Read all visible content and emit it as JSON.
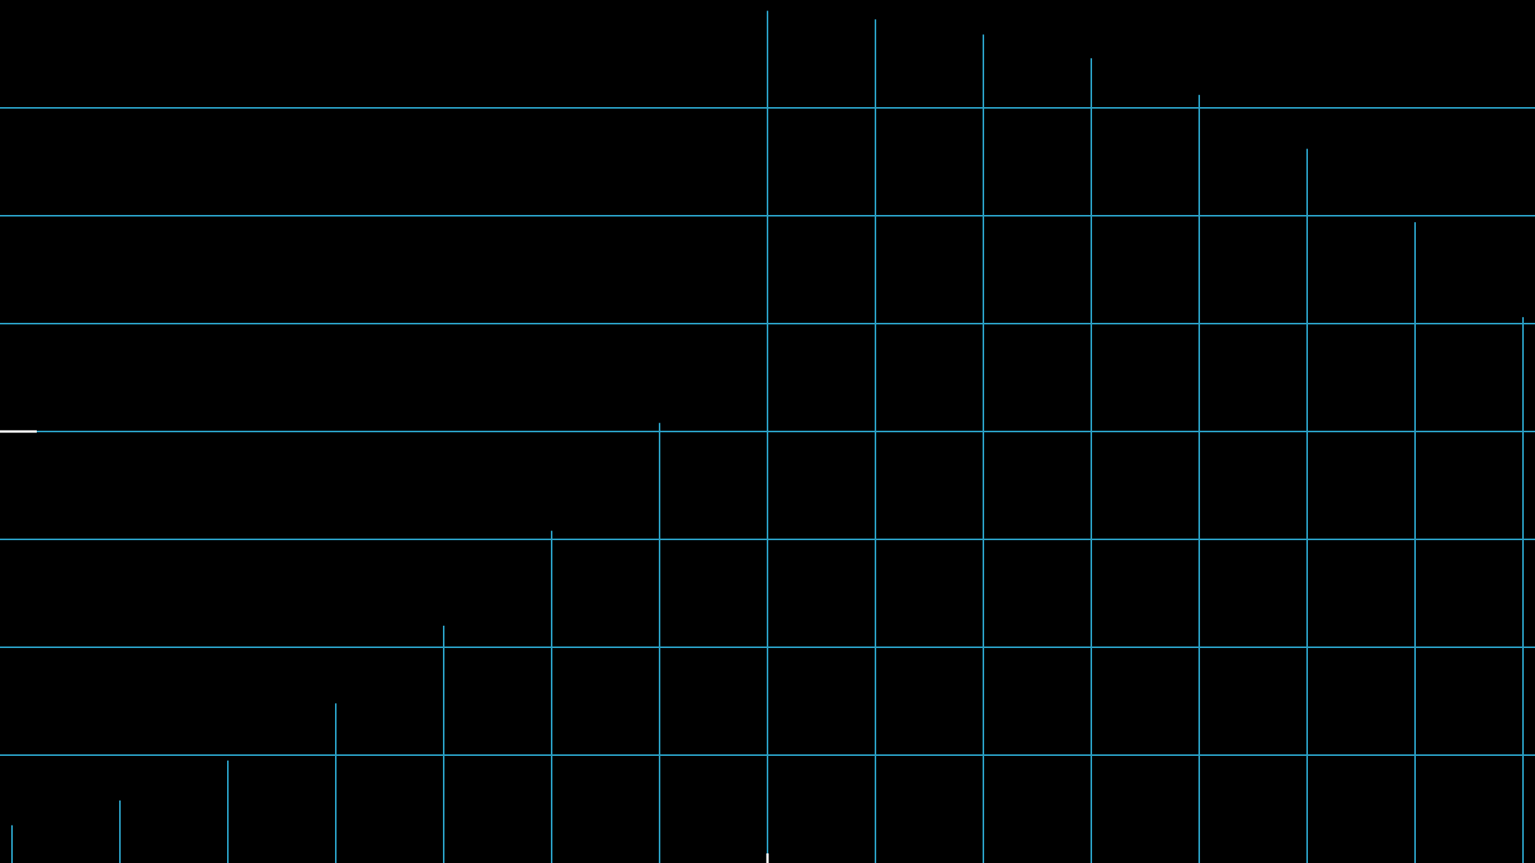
{
  "colors": {
    "background": "#000000",
    "grid": "#2a9fc4",
    "stem": "#2a9fc4",
    "marker": "#ffffff"
  },
  "chart_data": {
    "type": "stem",
    "title": "",
    "xlabel": "",
    "ylabel": "",
    "grid": true,
    "legend": "none",
    "xlim": [
      0,
      14.3
    ],
    "ylim": [
      0,
      8
    ],
    "y_gridlines": [
      1,
      2,
      3,
      4,
      5,
      6,
      7
    ],
    "x": [
      0,
      1,
      2,
      3,
      4,
      5,
      6,
      7,
      8,
      9,
      10,
      11,
      12,
      13,
      14
    ],
    "values": [
      0.35,
      0.58,
      0.95,
      1.48,
      2.2,
      3.08,
      4.08,
      7.9,
      7.82,
      7.68,
      7.46,
      7.12,
      6.62,
      5.94,
      5.06
    ],
    "markers": {
      "y_level": 4,
      "x_position": 7
    }
  }
}
